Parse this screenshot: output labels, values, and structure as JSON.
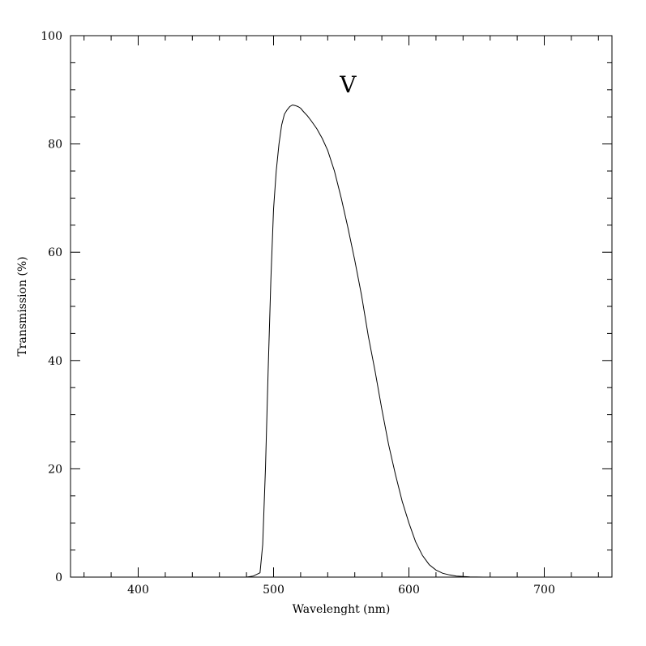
{
  "chart_data": {
    "type": "line",
    "xlabel": "Wavelenght (nm)",
    "ylabel": "Transmission (%)",
    "xlim": [
      350,
      750
    ],
    "ylim": [
      0,
      100
    ],
    "x_ticks": [
      400,
      500,
      600,
      700
    ],
    "y_ticks": [
      0,
      20,
      40,
      60,
      80,
      100
    ],
    "x_minor_step": 20,
    "y_minor_step": 5,
    "grid": false,
    "annotations": [
      {
        "text": "V",
        "x": 555,
        "y": 91
      }
    ],
    "series": [
      {
        "x": [
          480,
          485,
          490,
          492,
          494,
          496,
          498,
          500,
          502,
          504,
          506,
          508,
          510,
          512,
          514,
          516,
          518,
          520,
          522,
          525,
          528,
          532,
          536,
          540,
          545,
          550,
          555,
          560,
          565,
          570,
          575,
          580,
          585,
          590,
          595,
          600,
          605,
          610,
          615,
          620,
          625,
          630,
          635,
          640,
          645,
          650,
          655,
          660,
          665,
          670,
          675
        ],
        "values": [
          0,
          0.2,
          0.8,
          6,
          20,
          38,
          55,
          68,
          75,
          80,
          83.5,
          85.5,
          86.3,
          86.9,
          87.2,
          87.1,
          86.9,
          86.6,
          86.0,
          85.2,
          84.2,
          82.8,
          81.0,
          78.8,
          75.0,
          70.0,
          64.5,
          58.5,
          52.0,
          44.5,
          38.0,
          31.0,
          24.5,
          19.0,
          14.0,
          10.0,
          6.5,
          4.0,
          2.3,
          1.3,
          0.7,
          0.4,
          0.2,
          0.1,
          0.05,
          0.02,
          0.0,
          0.0,
          0.0,
          0.0,
          0.0
        ]
      }
    ]
  }
}
